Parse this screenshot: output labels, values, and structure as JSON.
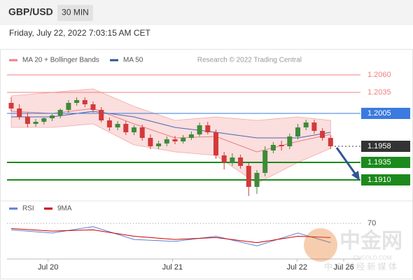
{
  "header": {
    "symbol": "GBP/USD",
    "interval": "30 MIN",
    "timestamp": "Friday, July 22, 2022 7:03:15 AM CET"
  },
  "chart_data": {
    "type": "candlestick",
    "legend": [
      "MA 20 + Bollinger Bands",
      "MA 50"
    ],
    "legend_colors": [
      "#f08080",
      "#2f5597"
    ],
    "credit": "Research © 2022 Trading Central",
    "ylim": [
      1.1882,
      1.2095
    ],
    "candle_colors": {
      "up": "#3f8a3a",
      "down": "#d23a3a"
    },
    "open": [
      1.202,
      1.2012,
      1.2,
      1.199,
      1.1993,
      1.1998,
      1.2002,
      1.201,
      1.202,
      1.2024,
      1.2018,
      1.201,
      1.1995,
      1.1985,
      1.199,
      1.1978,
      1.1985,
      1.197,
      1.1958,
      1.1962,
      1.1968,
      1.1965,
      1.197,
      1.1975,
      1.1988,
      1.1978,
      1.1945,
      1.1935,
      1.1942,
      1.193,
      1.19,
      1.192,
      1.1952,
      1.196,
      1.1958,
      1.1972,
      1.1985,
      1.1992,
      1.198,
      1.197
    ],
    "high": [
      1.2028,
      1.2018,
      1.2006,
      1.1997,
      1.1999,
      1.2004,
      1.2012,
      1.2024,
      1.2028,
      1.2028,
      1.2022,
      1.2014,
      1.1999,
      1.1994,
      1.1994,
      1.1988,
      1.1989,
      1.1975,
      1.1966,
      1.1972,
      1.1973,
      1.1974,
      1.1979,
      1.1992,
      1.1993,
      1.1982,
      1.195,
      1.1948,
      1.1946,
      1.1934,
      1.1924,
      1.1958,
      1.1964,
      1.1966,
      1.1976,
      1.199,
      1.1996,
      1.1996,
      1.1984,
      1.1974
    ],
    "low": [
      1.2008,
      1.1996,
      1.1985,
      1.1986,
      1.1989,
      1.1994,
      1.1998,
      1.2006,
      1.2016,
      1.2014,
      1.2006,
      1.1992,
      1.198,
      1.1981,
      1.1974,
      1.1974,
      1.1966,
      1.1954,
      1.1954,
      1.1958,
      1.1961,
      1.1962,
      1.1967,
      1.1972,
      1.1975,
      1.194,
      1.1925,
      1.193,
      1.1926,
      1.1887,
      1.189,
      1.1915,
      1.1948,
      1.1952,
      1.1954,
      1.1968,
      1.1981,
      1.1976,
      1.1966,
      1.1954
    ],
    "close": [
      1.2012,
      1.2,
      1.199,
      1.1993,
      1.1998,
      1.2002,
      1.201,
      1.202,
      1.2024,
      1.2018,
      1.201,
      1.1995,
      1.1985,
      1.199,
      1.1978,
      1.1985,
      1.197,
      1.1958,
      1.1962,
      1.1968,
      1.1965,
      1.197,
      1.1975,
      1.1988,
      1.1978,
      1.1945,
      1.1935,
      1.1942,
      1.193,
      1.19,
      1.192,
      1.1952,
      1.196,
      1.1958,
      1.1972,
      1.1985,
      1.1992,
      1.198,
      1.197,
      1.1958
    ],
    "overlay_x": [
      0,
      5,
      10,
      15,
      20,
      25,
      30,
      35,
      39
    ],
    "bb_upper": [
      1.203,
      1.2035,
      1.204,
      1.2015,
      1.1995,
      1.2,
      1.1995,
      1.2,
      1.1995
    ],
    "bb_lower": [
      1.1985,
      1.1985,
      1.199,
      1.196,
      1.195,
      1.1945,
      1.1905,
      1.1935,
      1.1955
    ],
    "ma20": [
      1.2008,
      1.2005,
      1.2012,
      1.199,
      1.197,
      1.1972,
      1.195,
      1.1965,
      1.1975
    ],
    "ma50": [
      1.2,
      1.2,
      1.2008,
      1.2,
      1.1985,
      1.1978,
      1.197,
      1.197,
      1.1978
    ],
    "levels": [
      {
        "value": 1.206,
        "label": "1.2060",
        "color": "#f08080",
        "style": "resistance"
      },
      {
        "value": 1.2035,
        "label": "1.2035",
        "color": "#f08080",
        "style": "resistance"
      },
      {
        "value": 1.2005,
        "label": "1.2005",
        "color": "#3a7be0",
        "style": "pivot"
      },
      {
        "value": 1.1958,
        "label": "1.1958",
        "color": "#333333",
        "style": "last"
      },
      {
        "value": 1.1935,
        "label": "1.1935",
        "color": "#1c8a1c",
        "style": "support"
      },
      {
        "value": 1.191,
        "label": "1.1910",
        "color": "#1c8a1c",
        "style": "support"
      }
    ],
    "xticks": [
      {
        "value": 4.5,
        "label": "Jul 20"
      },
      {
        "value": 19.7,
        "label": "Jul 21"
      },
      {
        "value": 34.9,
        "label": "Jul 22"
      },
      {
        "value": 40.6,
        "label": "Jul 26"
      }
    ]
  },
  "rsi_chart": {
    "type": "line",
    "ylim": [
      20,
      80
    ],
    "yticks": [
      70
    ],
    "x": [
      0,
      5,
      10,
      15,
      20,
      25,
      30,
      35,
      39
    ],
    "series": [
      {
        "name": "RSI",
        "color": "#5b7fd6",
        "values": [
          60,
          55,
          65,
          45,
          42,
          50,
          35,
          55,
          40
        ]
      },
      {
        "name": "9MA",
        "color": "#cc0000",
        "values": [
          62,
          58,
          60,
          50,
          45,
          48,
          40,
          50,
          48
        ]
      }
    ]
  },
  "watermark": {
    "title": "中金网",
    "site": "CNGOLD.COM",
    "tagline": "中 文 财 经 新 媒 体"
  }
}
